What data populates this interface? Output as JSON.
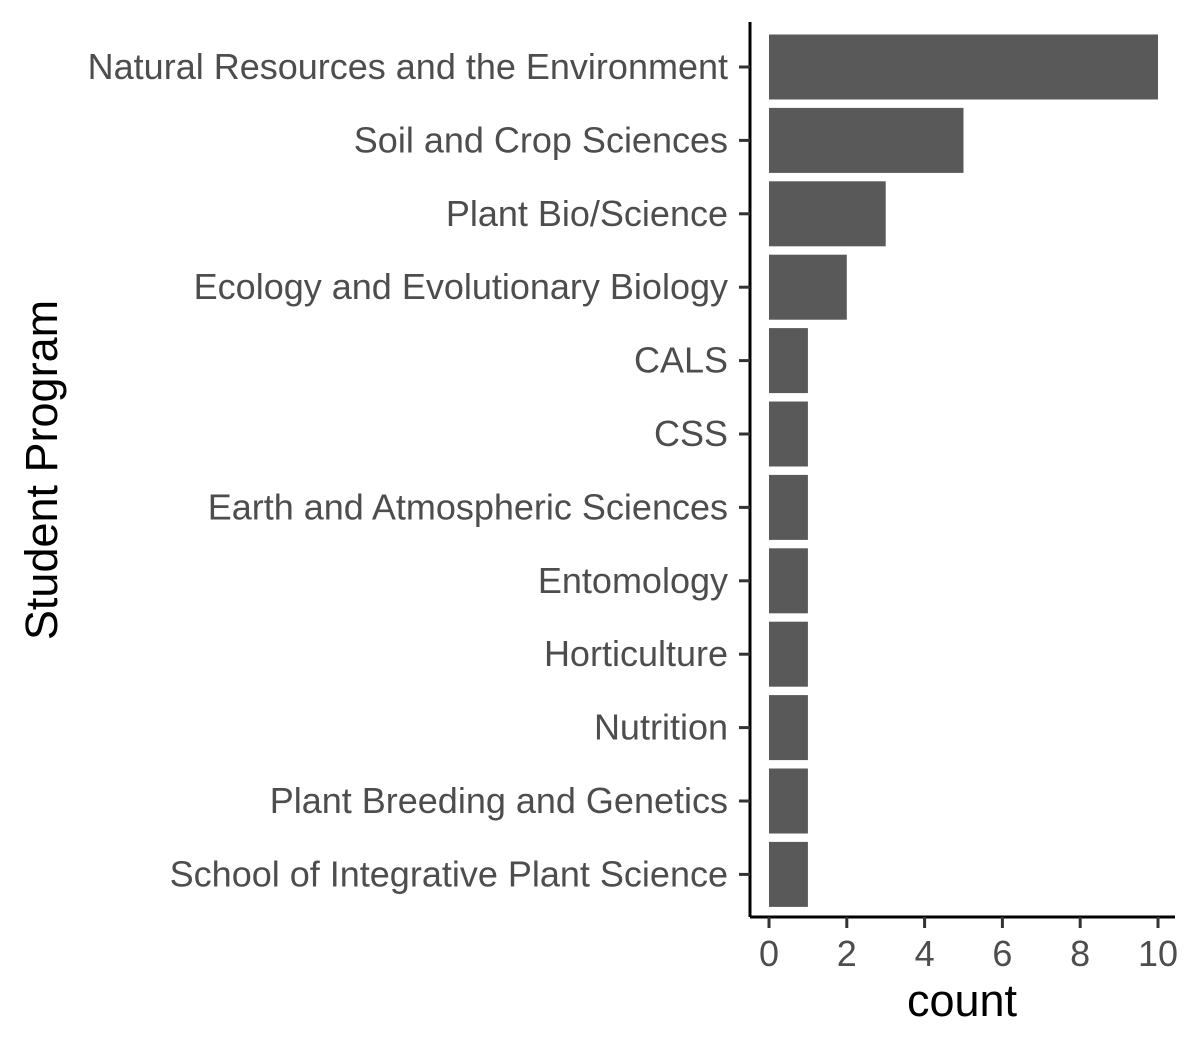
{
  "chart_data": {
    "type": "bar",
    "orientation": "horizontal",
    "xlabel": "count",
    "ylabel": "Student Program",
    "xlim": [
      0,
      10.5
    ],
    "x_ticks": [
      0,
      2,
      4,
      6,
      8,
      10
    ],
    "grid": false,
    "bar_color": "#595959",
    "categories": [
      "Natural Resources and the Environment",
      "Soil and Crop Sciences",
      "Plant Bio/Science",
      "Ecology and Evolutionary Biology",
      "CALS",
      "CSS",
      "Earth and Atmospheric Sciences",
      "Entomology",
      "Horticulture",
      "Nutrition",
      "Plant Breeding and Genetics",
      "School of Integrative Plant Science"
    ],
    "values": [
      10,
      5,
      3,
      2,
      1,
      1,
      1,
      1,
      1,
      1,
      1,
      1
    ]
  }
}
